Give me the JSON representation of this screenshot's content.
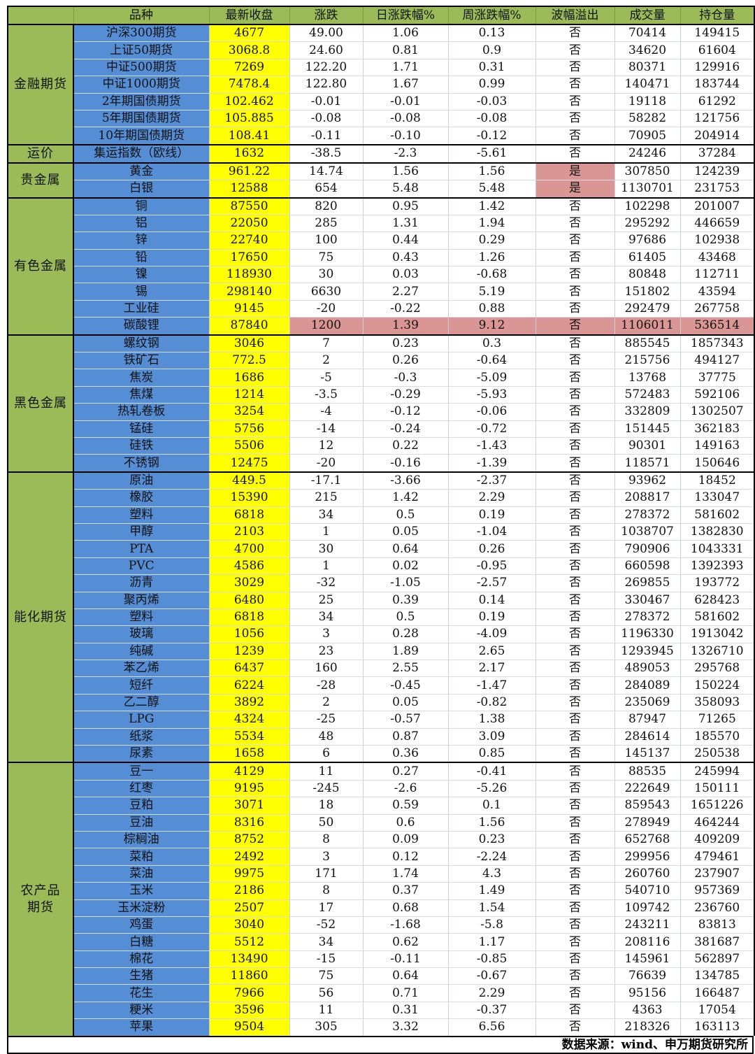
{
  "colors": {
    "header": "#9bbb59",
    "name_col": "#558ed5",
    "close_col": "#ffff00",
    "highlight": "#da9694"
  },
  "headers": [
    "",
    "品种",
    "最新收盘",
    "涨跌",
    "日涨跌幅%",
    "周涨跌幅%",
    "波幅溢出",
    "成交量",
    "持仓量"
  ],
  "groups": [
    {
      "name": "金融期货",
      "rows": [
        {
          "cells": [
            "沪深300期货",
            "4677",
            "49.00",
            "1.06",
            "0.13",
            "否",
            "70414",
            "149415"
          ]
        },
        {
          "cells": [
            "上证50期货",
            "3068.8",
            "24.60",
            "0.81",
            "0.9",
            "否",
            "34620",
            "61604"
          ]
        },
        {
          "cells": [
            "中证500期货",
            "7269",
            "122.20",
            "1.71",
            "0.31",
            "否",
            "80371",
            "129916"
          ]
        },
        {
          "cells": [
            "中证1000期货",
            "7478.4",
            "122.80",
            "1.67",
            "0.99",
            "否",
            "140471",
            "183744"
          ]
        },
        {
          "cells": [
            "2年期国债期货",
            "102.462",
            "-0.01",
            "-0.01",
            "-0.03",
            "否",
            "19118",
            "61292"
          ]
        },
        {
          "cells": [
            "5年期国债期货",
            "105.885",
            "-0.08",
            "-0.08",
            "-0.08",
            "否",
            "58282",
            "121756"
          ]
        },
        {
          "cells": [
            "10年期国债期货",
            "108.41",
            "-0.11",
            "-0.10",
            "-0.12",
            "否",
            "70905",
            "204914"
          ]
        }
      ]
    },
    {
      "name": "运价",
      "rows": [
        {
          "cells": [
            "集运指数（欧线）",
            "1632",
            "-38.5",
            "-2.3",
            "-5.61",
            "否",
            "24246",
            "37284"
          ]
        }
      ]
    },
    {
      "name": "贵金属",
      "rows": [
        {
          "cells": [
            "黄金",
            "961.22",
            "14.74",
            "1.56",
            "1.56",
            "是",
            "307850",
            "124239"
          ],
          "highlight": "overflow"
        },
        {
          "cells": [
            "白银",
            "12588",
            "654",
            "5.48",
            "5.48",
            "是",
            "1130701",
            "231753"
          ],
          "highlight": "overflow"
        }
      ]
    },
    {
      "name": "有色金属",
      "rows": [
        {
          "cells": [
            "铜",
            "87550",
            "820",
            "0.95",
            "1.42",
            "否",
            "102298",
            "201007"
          ]
        },
        {
          "cells": [
            "铝",
            "22050",
            "285",
            "1.31",
            "1.94",
            "否",
            "295292",
            "446659"
          ]
        },
        {
          "cells": [
            "锌",
            "22740",
            "100",
            "0.44",
            "0.29",
            "否",
            "97686",
            "102938"
          ]
        },
        {
          "cells": [
            "铅",
            "17650",
            "75",
            "0.43",
            "1.26",
            "否",
            "61405",
            "43468"
          ]
        },
        {
          "cells": [
            "镍",
            "118930",
            "30",
            "0.03",
            "-0.68",
            "否",
            "80848",
            "112711"
          ]
        },
        {
          "cells": [
            "锡",
            "298140",
            "6630",
            "2.27",
            "5.19",
            "否",
            "151802",
            "43594"
          ]
        },
        {
          "cells": [
            "工业硅",
            "9145",
            "-20",
            "-0.22",
            "0.88",
            "否",
            "292479",
            "267758"
          ]
        },
        {
          "cells": [
            "碳酸锂",
            "87840",
            "1200",
            "1.39",
            "9.12",
            "否",
            "1106011",
            "536514"
          ],
          "highlight": "row"
        }
      ]
    },
    {
      "name": "黑色金属",
      "rows": [
        {
          "cells": [
            "螺纹钢",
            "3046",
            "7",
            "0.23",
            "0.3",
            "否",
            "885545",
            "1857343"
          ]
        },
        {
          "cells": [
            "铁矿石",
            "772.5",
            "2",
            "0.26",
            "-0.64",
            "否",
            "215756",
            "494127"
          ]
        },
        {
          "cells": [
            "焦炭",
            "1686",
            "-5",
            "-0.3",
            "-5.09",
            "否",
            "13768",
            "37775"
          ]
        },
        {
          "cells": [
            "焦煤",
            "1214",
            "-3.5",
            "-0.29",
            "-5.93",
            "否",
            "572483",
            "592106"
          ]
        },
        {
          "cells": [
            "热轧卷板",
            "3254",
            "-4",
            "-0.12",
            "-0.06",
            "否",
            "332809",
            "1302507"
          ]
        },
        {
          "cells": [
            "锰硅",
            "5756",
            "-14",
            "-0.24",
            "-0.72",
            "否",
            "151445",
            "362183"
          ]
        },
        {
          "cells": [
            "硅铁",
            "5506",
            "12",
            "0.22",
            "-1.43",
            "否",
            "90301",
            "149163"
          ]
        },
        {
          "cells": [
            "不锈钢",
            "12475",
            "-20",
            "-0.16",
            "-1.39",
            "否",
            "118571",
            "150646"
          ]
        }
      ]
    },
    {
      "name": "能化期货",
      "rows": [
        {
          "cells": [
            "原油",
            "449.5",
            "-17.1",
            "-3.66",
            "-2.37",
            "否",
            "93962",
            "18452"
          ]
        },
        {
          "cells": [
            "橡胶",
            "15390",
            "215",
            "1.42",
            "2.29",
            "否",
            "208817",
            "133047"
          ]
        },
        {
          "cells": [
            "塑料",
            "6818",
            "34",
            "0.5",
            "0.19",
            "否",
            "278372",
            "581602"
          ]
        },
        {
          "cells": [
            "甲醇",
            "2103",
            "1",
            "0.05",
            "-1.04",
            "否",
            "1038707",
            "1382830"
          ]
        },
        {
          "cells": [
            "PTA",
            "4700",
            "30",
            "0.64",
            "0.26",
            "否",
            "790906",
            "1043331"
          ]
        },
        {
          "cells": [
            "PVC",
            "4586",
            "1",
            "0.02",
            "-0.95",
            "否",
            "660598",
            "1392393"
          ]
        },
        {
          "cells": [
            "沥青",
            "3029",
            "-32",
            "-1.05",
            "-2.57",
            "否",
            "269855",
            "193772"
          ]
        },
        {
          "cells": [
            "聚丙烯",
            "6480",
            "25",
            "0.39",
            "0.14",
            "否",
            "330467",
            "628423"
          ]
        },
        {
          "cells": [
            "塑料",
            "6818",
            "34",
            "0.5",
            "0.19",
            "否",
            "278372",
            "581602"
          ]
        },
        {
          "cells": [
            "玻璃",
            "1056",
            "3",
            "0.28",
            "-4.09",
            "否",
            "1196330",
            "1913042"
          ]
        },
        {
          "cells": [
            "纯碱",
            "1239",
            "23",
            "1.89",
            "2.65",
            "否",
            "1293945",
            "1326710"
          ]
        },
        {
          "cells": [
            "苯乙烯",
            "6437",
            "160",
            "2.55",
            "2.17",
            "否",
            "489053",
            "295768"
          ]
        },
        {
          "cells": [
            "短纤",
            "6224",
            "-28",
            "-0.45",
            "-1.47",
            "否",
            "284089",
            "150224"
          ]
        },
        {
          "cells": [
            "乙二醇",
            "3892",
            "2",
            "0.05",
            "-0.82",
            "否",
            "235069",
            "358093"
          ]
        },
        {
          "cells": [
            "LPG",
            "4324",
            "-25",
            "-0.57",
            "1.38",
            "否",
            "87947",
            "71265"
          ]
        },
        {
          "cells": [
            "纸浆",
            "5534",
            "48",
            "0.87",
            "3.09",
            "否",
            "284614",
            "185570"
          ]
        },
        {
          "cells": [
            "尿素",
            "1658",
            "6",
            "0.36",
            "0.85",
            "否",
            "145137",
            "250538"
          ]
        }
      ]
    },
    {
      "name": "农产品期货",
      "rows": [
        {
          "cells": [
            "豆一",
            "4129",
            "11",
            "0.27",
            "-0.41",
            "否",
            "88535",
            "245994"
          ]
        },
        {
          "cells": [
            "红枣",
            "9195",
            "-245",
            "-2.6",
            "-5.26",
            "否",
            "222649",
            "150111"
          ]
        },
        {
          "cells": [
            "豆粕",
            "3071",
            "18",
            "0.59",
            "0.1",
            "否",
            "859543",
            "1651226"
          ]
        },
        {
          "cells": [
            "豆油",
            "8316",
            "50",
            "0.6",
            "1.56",
            "否",
            "278949",
            "464244"
          ]
        },
        {
          "cells": [
            "棕榈油",
            "8752",
            "8",
            "0.09",
            "0.23",
            "否",
            "652768",
            "409209"
          ]
        },
        {
          "cells": [
            "菜粕",
            "2492",
            "3",
            "0.12",
            "-2.24",
            "否",
            "299956",
            "479461"
          ]
        },
        {
          "cells": [
            "菜油",
            "9975",
            "171",
            "1.74",
            "4.3",
            "否",
            "260760",
            "237907"
          ]
        },
        {
          "cells": [
            "玉米",
            "2186",
            "8",
            "0.37",
            "1.49",
            "否",
            "540710",
            "957369"
          ]
        },
        {
          "cells": [
            "玉米淀粉",
            "2507",
            "17",
            "0.68",
            "1.54",
            "否",
            "109742",
            "236760"
          ]
        },
        {
          "cells": [
            "鸡蛋",
            "3040",
            "-52",
            "-1.68",
            "-5.8",
            "否",
            "243211",
            "83813"
          ]
        },
        {
          "cells": [
            "白糖",
            "5512",
            "34",
            "0.62",
            "1.17",
            "否",
            "208116",
            "381687"
          ]
        },
        {
          "cells": [
            "棉花",
            "13490",
            "-15",
            "-0.11",
            "-0.85",
            "否",
            "145961",
            "562897"
          ]
        },
        {
          "cells": [
            "生猪",
            "11860",
            "75",
            "0.64",
            "-0.67",
            "否",
            "76639",
            "134785"
          ]
        },
        {
          "cells": [
            "花生",
            "7966",
            "56",
            "0.71",
            "2.29",
            "否",
            "95156",
            "166487"
          ]
        },
        {
          "cells": [
            "粳米",
            "3596",
            "11",
            "0.31",
            "-0.37",
            "否",
            "4363",
            "17054"
          ]
        },
        {
          "cells": [
            "苹果",
            "9504",
            "305",
            "3.32",
            "6.56",
            "否",
            "218326",
            "163113"
          ]
        }
      ]
    }
  ],
  "footer": {
    "source": "数据来源：wind、申万期货研究所"
  }
}
